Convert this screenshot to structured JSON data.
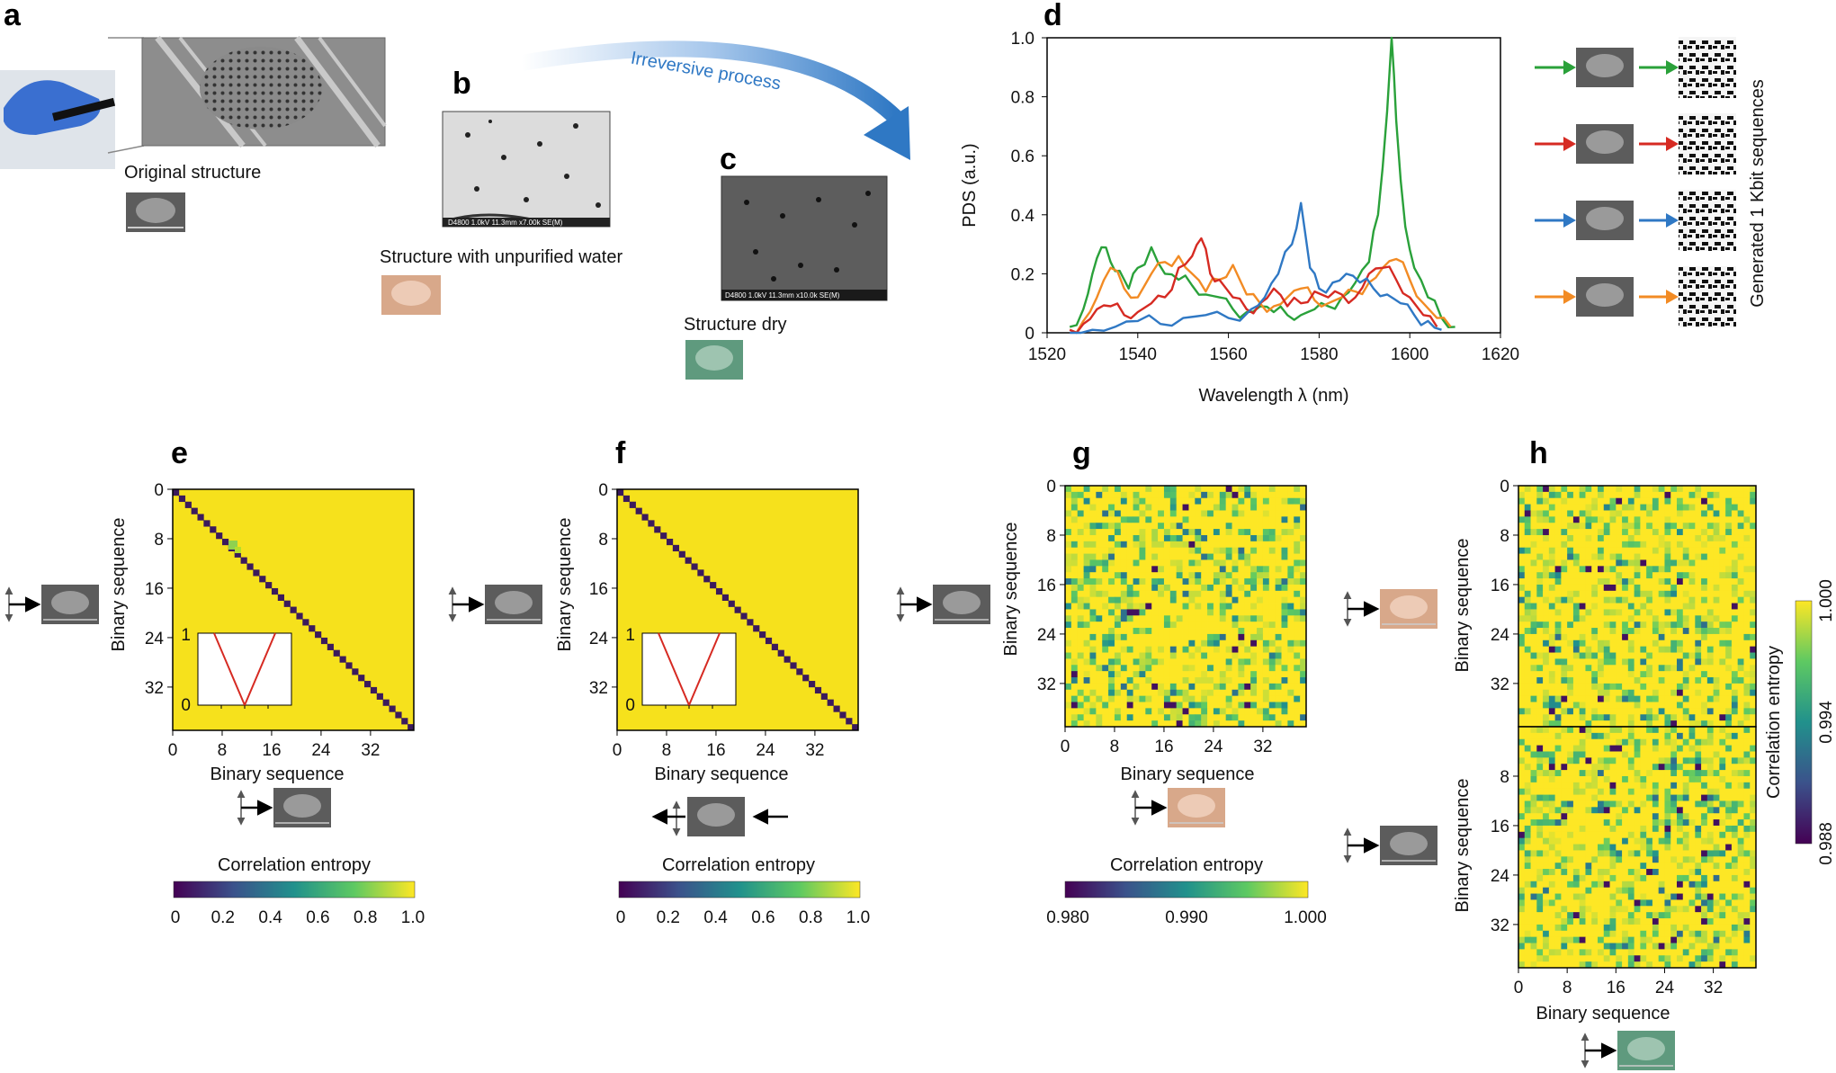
{
  "panel_letters": [
    "a",
    "b",
    "c",
    "d",
    "e",
    "f",
    "g",
    "h"
  ],
  "panel_a": {
    "caption": "Original structure"
  },
  "panel_b": {
    "caption": "Structure with unpurified water"
  },
  "panel_c": {
    "caption": "Structure dry"
  },
  "arrow_label": "Irreversive process",
  "colors": {
    "blue": "#2f78c4",
    "orange": "#f28b24",
    "green": "#2aa13a",
    "red": "#d62a22",
    "heat_yellow": "#f6e11c",
    "heat_purple": "#3b1a5c",
    "sem_gray": "#6f6f6f",
    "water_tint": "#d8a88a",
    "dry_tint": "#5f9a7e"
  },
  "chart_data": [
    {
      "id": "d",
      "type": "line",
      "xlabel": "Wavelength λ (nm)",
      "ylabel": "PDS (a.u.)",
      "xlim": [
        1520,
        1620
      ],
      "ylim": [
        0,
        1.0
      ],
      "xticks": [
        1520,
        1540,
        1560,
        1580,
        1600,
        1620
      ],
      "yticks": [
        0,
        0.2,
        0.4,
        0.6,
        0.8,
        1.0
      ],
      "ytick_labels": [
        "0",
        "0.2",
        "0.4",
        "0.6",
        "0.8",
        "1.0"
      ],
      "side_label": "Generated 1 Kbit sequences",
      "series": [
        {
          "name": "green",
          "color": "#2aa13a",
          "x": [
            1525,
            1528,
            1530,
            1532,
            1534,
            1536,
            1538,
            1540,
            1543,
            1546,
            1549,
            1552,
            1555,
            1558,
            1561,
            1564,
            1567,
            1570,
            1573,
            1576,
            1579,
            1582,
            1585,
            1588,
            1591,
            1593,
            1595,
            1596,
            1597,
            1599,
            1601,
            1604,
            1607,
            1610
          ],
          "y": [
            0.02,
            0.08,
            0.2,
            0.29,
            0.24,
            0.21,
            0.15,
            0.22,
            0.29,
            0.2,
            0.18,
            0.16,
            0.13,
            0.12,
            0.08,
            0.07,
            0.09,
            0.07,
            0.06,
            0.06,
            0.08,
            0.09,
            0.12,
            0.17,
            0.24,
            0.4,
            0.75,
            1.0,
            0.72,
            0.36,
            0.22,
            0.12,
            0.05,
            0.02
          ]
        },
        {
          "name": "orange",
          "color": "#f28b24",
          "x": [
            1525,
            1528,
            1531,
            1534,
            1537,
            1540,
            1543,
            1546,
            1549,
            1552,
            1555,
            1558,
            1561,
            1564,
            1567,
            1570,
            1573,
            1576,
            1579,
            1582,
            1585,
            1588,
            1591,
            1594,
            1597,
            1600,
            1603,
            1606,
            1609
          ],
          "y": [
            0.01,
            0.04,
            0.12,
            0.22,
            0.15,
            0.12,
            0.2,
            0.24,
            0.26,
            0.2,
            0.14,
            0.18,
            0.23,
            0.13,
            0.1,
            0.09,
            0.12,
            0.15,
            0.11,
            0.1,
            0.12,
            0.14,
            0.17,
            0.22,
            0.25,
            0.18,
            0.1,
            0.05,
            0.02
          ]
        },
        {
          "name": "red",
          "color": "#d62a22",
          "x": [
            1525,
            1528,
            1531,
            1534,
            1537,
            1540,
            1543,
            1546,
            1549,
            1552,
            1554,
            1556,
            1558,
            1561,
            1564,
            1567,
            1570,
            1573,
            1576,
            1579,
            1582,
            1585,
            1588,
            1591,
            1594,
            1597,
            1600,
            1603,
            1606
          ],
          "y": [
            0.01,
            0.03,
            0.08,
            0.09,
            0.06,
            0.07,
            0.1,
            0.12,
            0.22,
            0.26,
            0.32,
            0.2,
            0.18,
            0.12,
            0.08,
            0.1,
            0.15,
            0.09,
            0.1,
            0.14,
            0.12,
            0.13,
            0.12,
            0.2,
            0.22,
            0.18,
            0.12,
            0.06,
            0.02
          ]
        },
        {
          "name": "blue",
          "color": "#2f78c4",
          "x": [
            1525,
            1530,
            1535,
            1540,
            1545,
            1550,
            1555,
            1560,
            1565,
            1568,
            1571,
            1574,
            1576,
            1578,
            1580,
            1583,
            1586,
            1589,
            1592,
            1595,
            1598,
            1601,
            1604,
            1607
          ],
          "y": [
            0.0,
            0.01,
            0.02,
            0.04,
            0.03,
            0.05,
            0.06,
            0.05,
            0.08,
            0.12,
            0.2,
            0.3,
            0.44,
            0.22,
            0.15,
            0.17,
            0.2,
            0.17,
            0.15,
            0.13,
            0.1,
            0.06,
            0.04,
            0.01
          ]
        }
      ]
    },
    {
      "id": "e",
      "type": "heatmap",
      "pattern": "diagonal",
      "size": 39,
      "xlabel": "Binary sequence",
      "ylabel": "Binary sequence",
      "ticks": [
        0,
        8,
        16,
        24,
        32
      ],
      "colorbar": {
        "label": "Correlation entropy",
        "min": 0,
        "max": 1.0,
        "ticks": [
          "0",
          "0.2",
          "0.4",
          "0.6",
          "0.8",
          "1.0"
        ]
      },
      "inset_yticks": [
        "1",
        "0"
      ]
    },
    {
      "id": "f",
      "type": "heatmap",
      "pattern": "diagonal",
      "size": 39,
      "xlabel": "Binary sequence",
      "ylabel": "Binary sequence",
      "ticks": [
        0,
        8,
        16,
        24,
        32
      ],
      "colorbar": {
        "label": "Correlation entropy",
        "min": 0,
        "max": 1.0,
        "ticks": [
          "0",
          "0.2",
          "0.4",
          "0.6",
          "0.8",
          "1.0"
        ]
      },
      "inset_yticks": [
        "1",
        "0"
      ]
    },
    {
      "id": "g",
      "type": "heatmap",
      "pattern": "random",
      "size": 39,
      "xlabel": "Binary sequence",
      "ylabel": "Binary sequence",
      "ticks": [
        0,
        8,
        16,
        24,
        32
      ],
      "colorbar": {
        "label": "Correlation entropy",
        "min": 0.98,
        "max": 1.0,
        "ticks": [
          "0.980",
          "0.990",
          "1.000"
        ]
      }
    },
    {
      "id": "h",
      "type": "heatmap",
      "pattern": "random",
      "size": 39,
      "xlabel": "Binary sequence",
      "ylabel": "Binary sequence",
      "top_yticks": [
        0,
        8,
        16,
        24,
        32
      ],
      "bottom_yticks": [
        8,
        16,
        24,
        32
      ],
      "xticks": [
        0,
        8,
        16,
        24,
        32
      ],
      "colorbar": {
        "label": "Correlation entropy",
        "min": 0.988,
        "max": 1.0,
        "ticks": [
          "1.000",
          "0.994",
          "0.988"
        ]
      }
    }
  ]
}
